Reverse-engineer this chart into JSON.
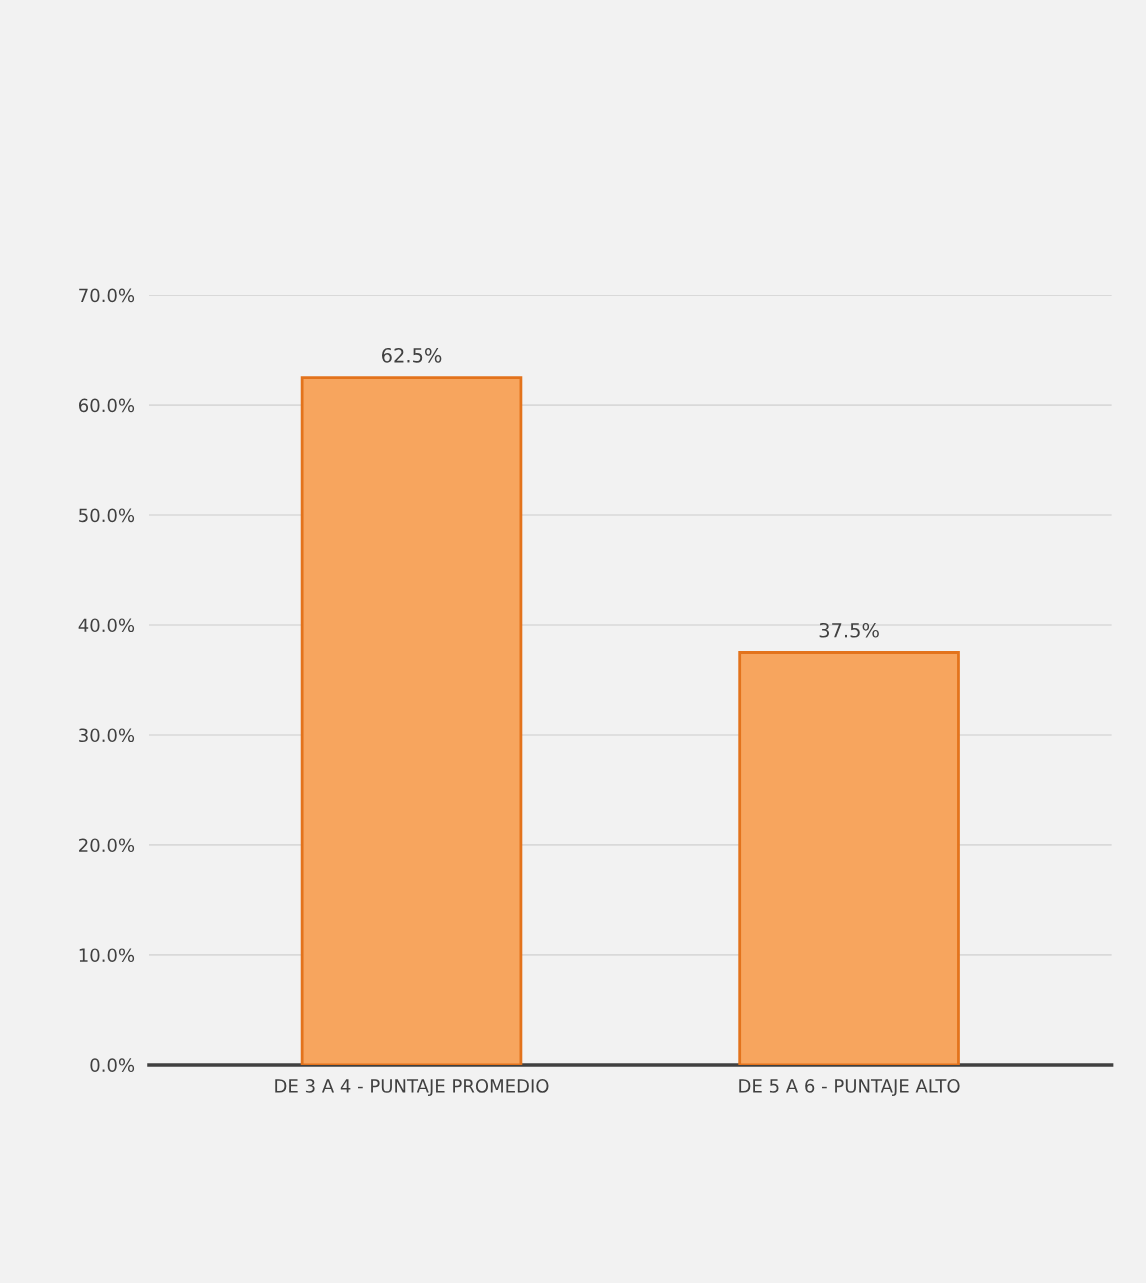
{
  "chart_data": {
    "type": "bar",
    "categories": [
      "DE 3 A 4 - PUNTAJE PROMEDIO",
      "DE 5 A 6 - PUNTAJE ALTO"
    ],
    "values": [
      62.5,
      37.5
    ],
    "color": "#f7a55e",
    "value_labels": [
      "62.5%",
      "37.5%"
    ],
    "ylim": [
      0,
      70
    ],
    "yticks": [
      {
        "value": 0,
        "label": "0.0%"
      },
      {
        "value": 10,
        "label": "10.0%"
      },
      {
        "value": 20,
        "label": "20.0%"
      },
      {
        "value": 30,
        "label": "30.0%"
      },
      {
        "value": 40,
        "label": "40.0%"
      },
      {
        "value": 50,
        "label": "50.0%"
      },
      {
        "value": 60,
        "label": "60.0%"
      },
      {
        "value": 70,
        "label": "70.0%"
      }
    ],
    "grid": "y"
  }
}
